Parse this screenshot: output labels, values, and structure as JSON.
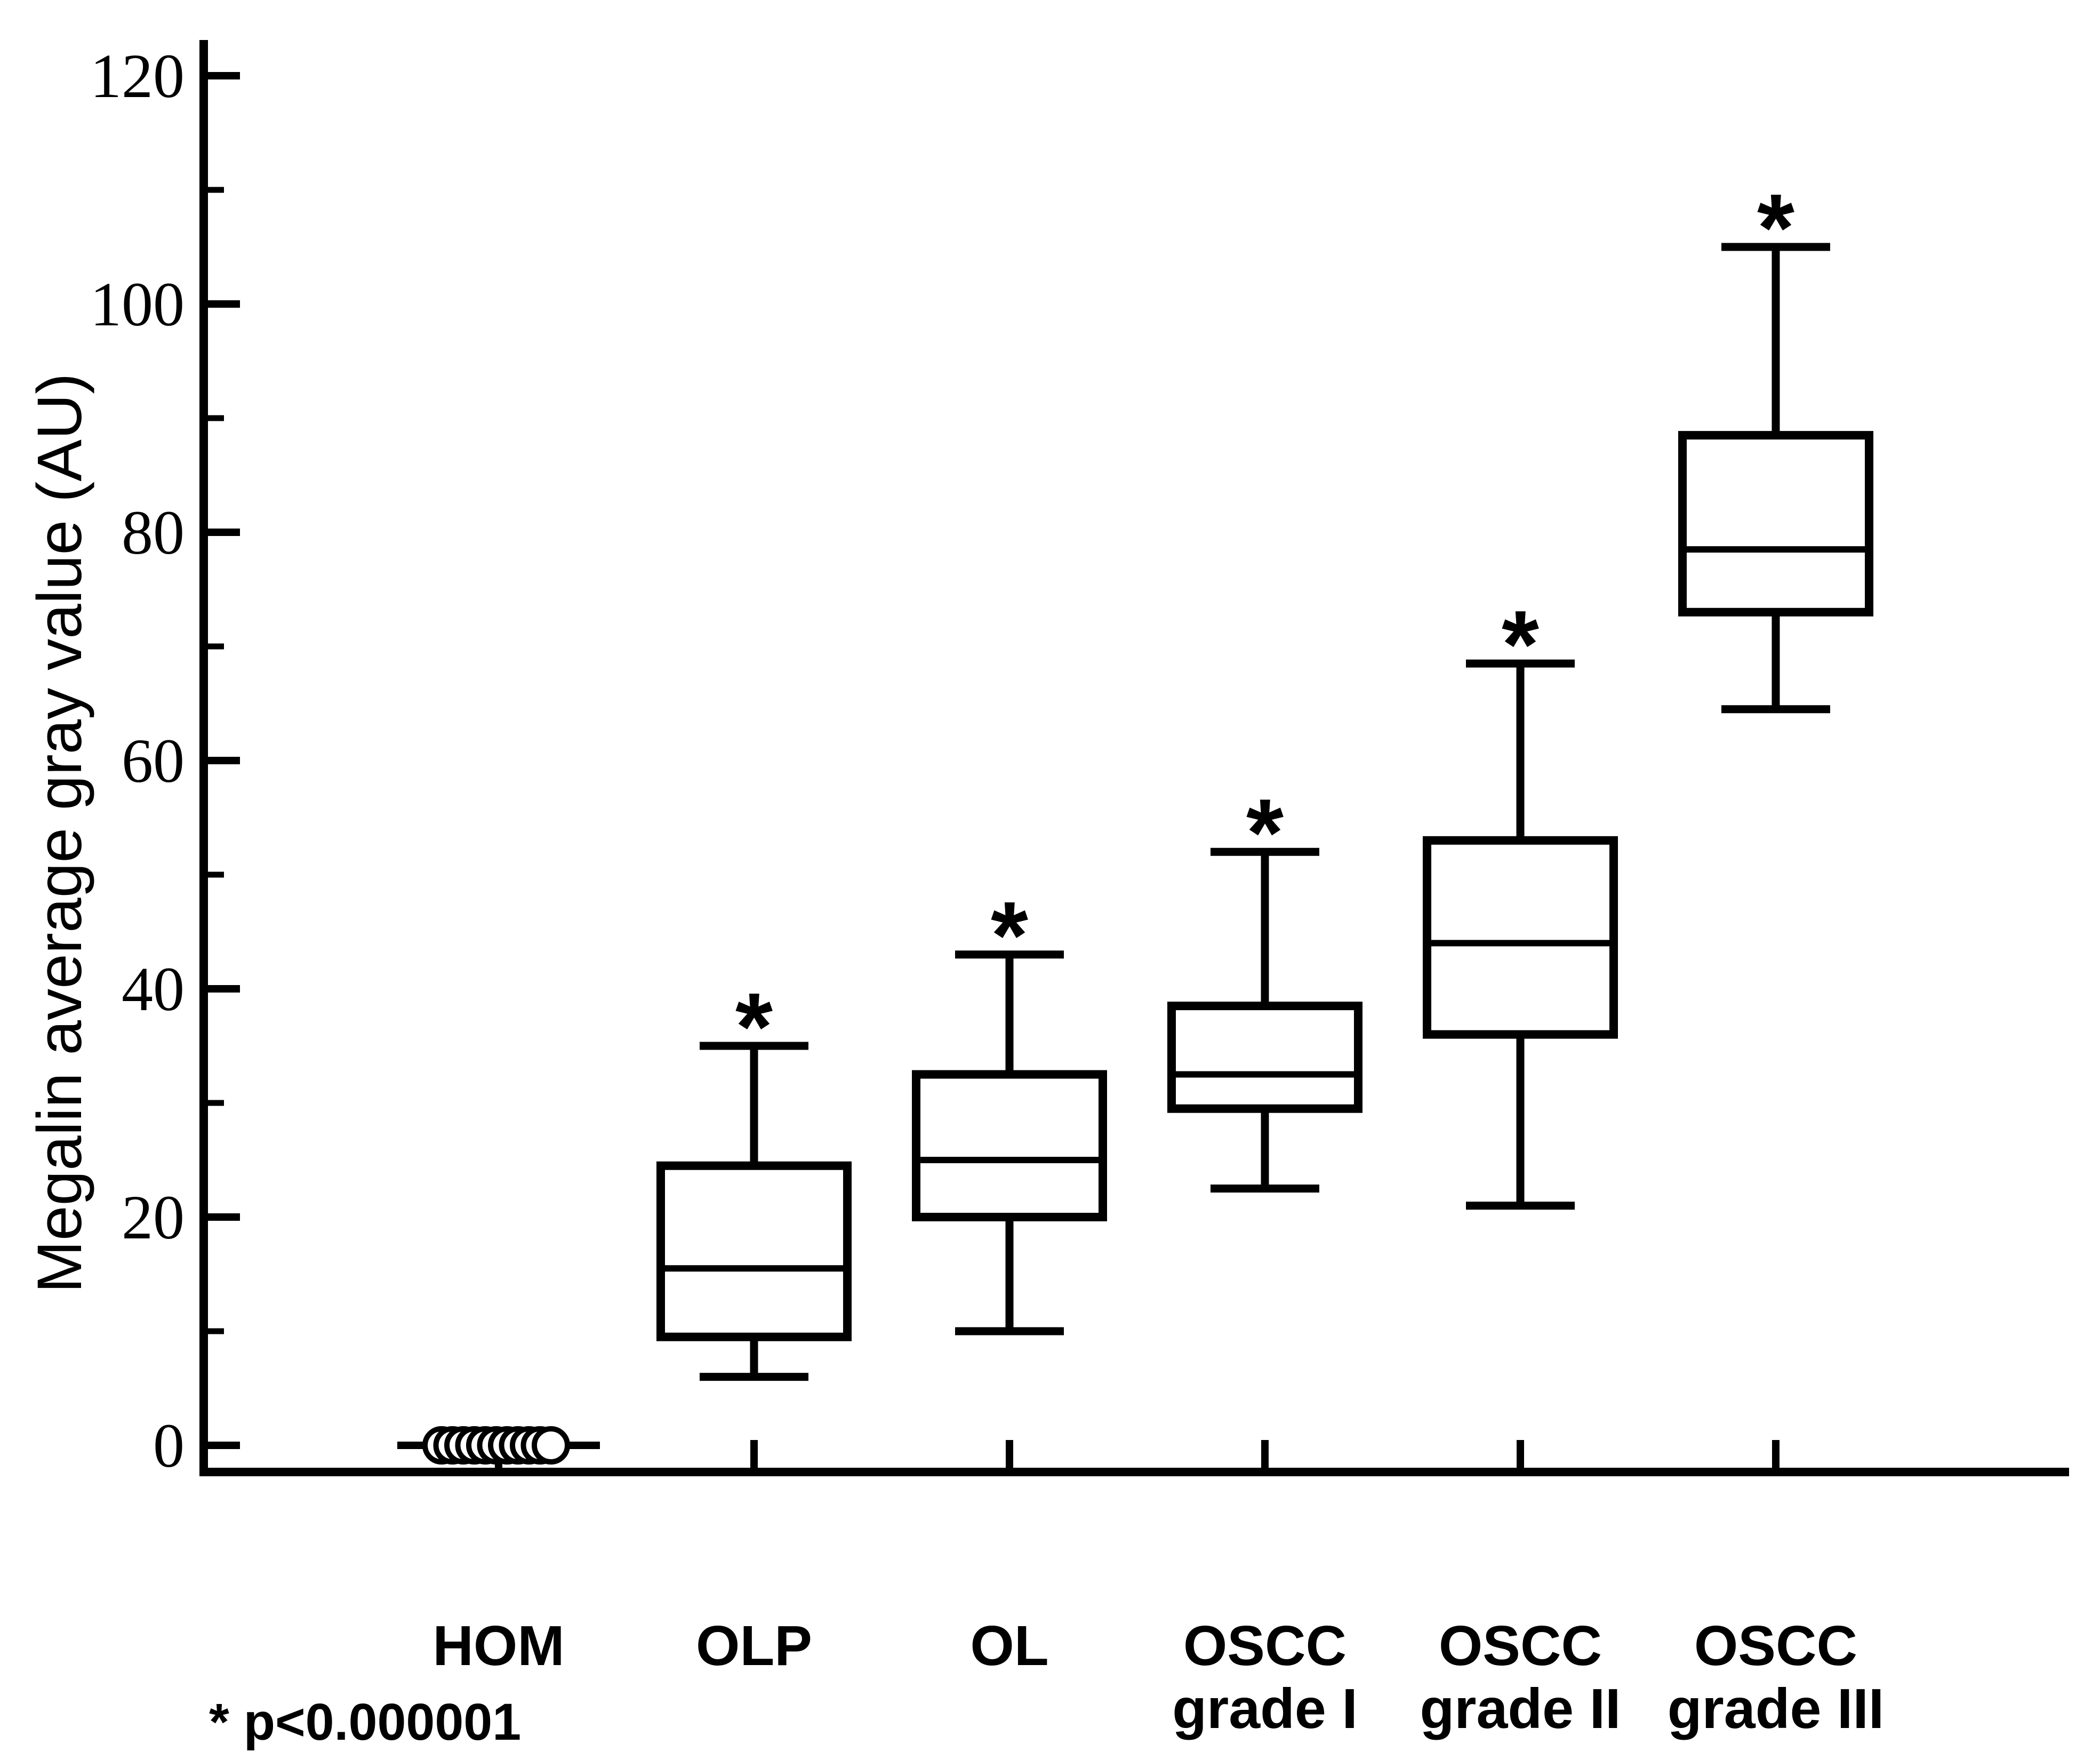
{
  "figure": {
    "background_color": "#ffffff",
    "ink_color": "#000000",
    "point_fill_color": "#ffffff"
  },
  "chart_data": {
    "type": "box",
    "title": "",
    "xlabel": "",
    "ylabel": "Megalin average gray value (AU)",
    "ylim": [
      0,
      120
    ],
    "y_major_ticks": [
      0,
      20,
      40,
      60,
      80,
      100,
      120
    ],
    "y_minor_ticks": [
      10,
      30,
      50,
      70,
      90,
      110
    ],
    "grid": false,
    "legend": null,
    "categories": [
      "HOM",
      "OLP",
      "OL",
      "OSCC grade I",
      "OSCC grade II",
      "OSCC grade III"
    ],
    "category_label_lines": [
      [
        "HOM"
      ],
      [
        "OLP"
      ],
      [
        "OL"
      ],
      [
        "OSCC",
        "grade I"
      ],
      [
        "OSCC",
        "grade II"
      ],
      [
        "OSCC",
        "grade III"
      ]
    ],
    "groups": [
      {
        "name": "HOM",
        "display": "points-on-line",
        "line_value": 0,
        "points": [
          0,
          0,
          0,
          0,
          0,
          0,
          0,
          0,
          0,
          0,
          0
        ],
        "significant": false
      },
      {
        "name": "OLP",
        "display": "box-whisker",
        "whisker_low": 6,
        "q1": 9.5,
        "median": 15.5,
        "q3": 24.5,
        "whisker_high": 35,
        "significant": true
      },
      {
        "name": "OL",
        "display": "box-whisker",
        "whisker_low": 10,
        "q1": 20,
        "median": 25,
        "q3": 32.5,
        "whisker_high": 43,
        "significant": true
      },
      {
        "name": "OSCC grade I",
        "display": "box-whisker",
        "whisker_low": 22.5,
        "q1": 29.5,
        "median": 32.5,
        "q3": 38.5,
        "whisker_high": 52,
        "significant": true
      },
      {
        "name": "OSCC grade II",
        "display": "box-whisker",
        "whisker_low": 21,
        "q1": 36,
        "median": 44,
        "q3": 53,
        "whisker_high": 68.5,
        "significant": true
      },
      {
        "name": "OSCC grade III",
        "display": "box-whisker",
        "whisker_low": 64.5,
        "q1": 73,
        "median": 78.5,
        "q3": 88.5,
        "whisker_high": 105,
        "significant": true
      }
    ],
    "significance_marker": "*",
    "footnote": "* p<0.000001"
  }
}
